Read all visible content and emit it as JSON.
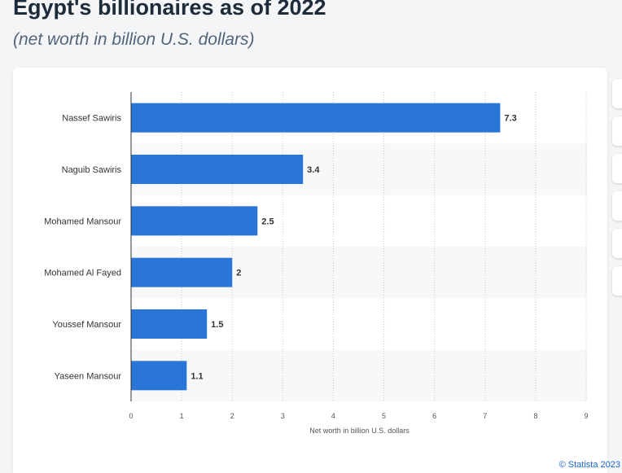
{
  "chart_data": {
    "type": "bar",
    "orientation": "horizontal",
    "title": "Egypt's billionaires as of 2022",
    "subtitle": "(net worth in billion U.S. dollars)",
    "categories": [
      "Nassef Sawiris",
      "Naguib Sawiris",
      "Mohamed Mansour",
      "Mohamed Al Fayed",
      "Youssef Mansour",
      "Yaseen Mansour"
    ],
    "values": [
      7.3,
      3.4,
      2.5,
      2,
      1.5,
      1.1
    ],
    "data_labels": [
      "7.3",
      "3.4",
      "2.5",
      "2",
      "1.5",
      "1.1"
    ],
    "xlabel": "Net worth in billion U.S. dollars",
    "ylabel": "",
    "xlim": [
      0,
      9
    ],
    "ticks": [
      "0",
      "1",
      "2",
      "3",
      "4",
      "5",
      "6",
      "7",
      "8",
      "9"
    ],
    "grid": true,
    "bar_color": "#2a75d8"
  },
  "credit": "© Statista 2023"
}
